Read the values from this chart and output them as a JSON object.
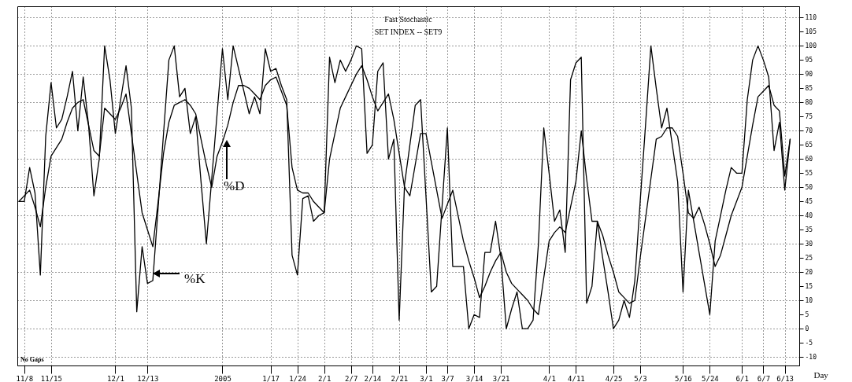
{
  "chart_data": {
    "type": "line",
    "title": "Fast Stochastic",
    "subtitle": "SET INDEX -- SET9",
    "xlabel": "Day",
    "categories": [
      null,
      "11/8",
      null,
      null,
      null,
      null,
      "11/15",
      null,
      null,
      null,
      null,
      null,
      null,
      null,
      null,
      null,
      null,
      null,
      "12/1",
      null,
      null,
      null,
      null,
      null,
      "12/13",
      null,
      null,
      null,
      null,
      null,
      null,
      null,
      null,
      null,
      null,
      null,
      null,
      null,
      "2005",
      null,
      null,
      null,
      null,
      null,
      null,
      null,
      null,
      "1/17",
      null,
      null,
      null,
      null,
      "1/24",
      null,
      null,
      null,
      null,
      "2/1",
      null,
      null,
      null,
      null,
      "2/7",
      null,
      null,
      null,
      "2/14",
      null,
      null,
      null,
      null,
      "2/21",
      null,
      null,
      null,
      null,
      "3/1",
      null,
      null,
      null,
      "3/7",
      null,
      null,
      null,
      null,
      "3/14",
      null,
      null,
      null,
      null,
      "3/21",
      null,
      null,
      null,
      null,
      null,
      null,
      null,
      null,
      "4/1",
      null,
      null,
      null,
      null,
      "4/11",
      null,
      null,
      null,
      null,
      null,
      null,
      "4/25",
      null,
      null,
      null,
      null,
      "5/3",
      null,
      null,
      null,
      null,
      null,
      null,
      null,
      "5/16",
      null,
      null,
      null,
      null,
      "5/24",
      null,
      null,
      null,
      null,
      null,
      "6/1",
      null,
      null,
      null,
      "6/7",
      null,
      null,
      null,
      "6/13",
      null
    ],
    "ylim": [
      -13,
      114
    ],
    "yticks": [
      -10,
      -5,
      0,
      5,
      10,
      15,
      20,
      25,
      30,
      35,
      40,
      45,
      50,
      55,
      60,
      65,
      70,
      75,
      80,
      85,
      90,
      95,
      100,
      105,
      110
    ],
    "grid": true,
    "line_style": "solid",
    "marker": "none",
    "series": [
      {
        "color": "#000000",
        "values": [
          45,
          45,
          57,
          48,
          19,
          68,
          87,
          71,
          74,
          82,
          91,
          70,
          89,
          72,
          47,
          60,
          100,
          88,
          69,
          81,
          93,
          78,
          6,
          29,
          16,
          17,
          43,
          69,
          95,
          100,
          82,
          85,
          69,
          75,
          52,
          30,
          53,
          76,
          99,
          81,
          100,
          92,
          84,
          76,
          82,
          76,
          99,
          91,
          92,
          86,
          81,
          26,
          19,
          46,
          47,
          38,
          40,
          41,
          96,
          87,
          95,
          91,
          95,
          100,
          99,
          62,
          65,
          91,
          94,
          60,
          67,
          3,
          51,
          65,
          79,
          81,
          47,
          13,
          15,
          43,
          71,
          22,
          22,
          22,
          0,
          5,
          4,
          27,
          27,
          38,
          25,
          0,
          7,
          13,
          0,
          0,
          3,
          30,
          71,
          55,
          38,
          42,
          27,
          88,
          94,
          96,
          9,
          15,
          38,
          25,
          13,
          0,
          3,
          10,
          4,
          17,
          45,
          72,
          100,
          85,
          71,
          78,
          65,
          52,
          13,
          49,
          38,
          27,
          16,
          5,
          31,
          40,
          49,
          57,
          55,
          55,
          81,
          95,
          100,
          95,
          89,
          63,
          73,
          49,
          67
        ]
      },
      {
        "color": "#000000",
        "values": [
          45,
          47,
          49,
          43,
          36,
          50,
          61,
          64,
          67,
          73,
          78,
          80,
          81,
          72,
          63,
          61,
          78,
          76,
          74,
          78,
          83,
          69,
          55,
          41,
          35,
          29,
          45,
          62,
          73,
          79,
          80,
          81,
          79,
          76,
          67,
          58,
          50,
          61,
          66,
          72,
          80,
          86,
          86,
          85,
          83,
          81,
          86,
          88,
          89,
          84,
          79,
          57,
          49,
          48,
          48,
          45,
          43,
          41,
          60,
          69,
          78,
          82,
          86,
          90,
          93,
          88,
          82,
          77,
          80,
          83,
          74,
          62,
          50,
          47,
          58,
          69,
          69,
          59,
          49,
          39,
          44,
          49,
          40,
          31,
          24,
          18,
          11,
          15,
          20,
          24,
          27,
          20,
          16,
          14,
          12,
          10,
          7,
          5,
          18,
          31,
          34,
          36,
          34,
          43,
          52,
          70,
          53,
          38,
          38,
          33,
          26,
          20,
          13,
          11,
          9,
          10,
          25,
          39,
          53,
          67,
          68,
          71,
          71,
          68,
          55,
          41,
          39,
          43,
          37,
          30,
          22,
          26,
          33,
          40,
          45,
          50,
          61,
          72,
          82,
          84,
          86,
          79,
          77,
          54,
          67
        ]
      }
    ],
    "annotations": [
      "%D",
      "%K",
      "No Gaps"
    ]
  }
}
